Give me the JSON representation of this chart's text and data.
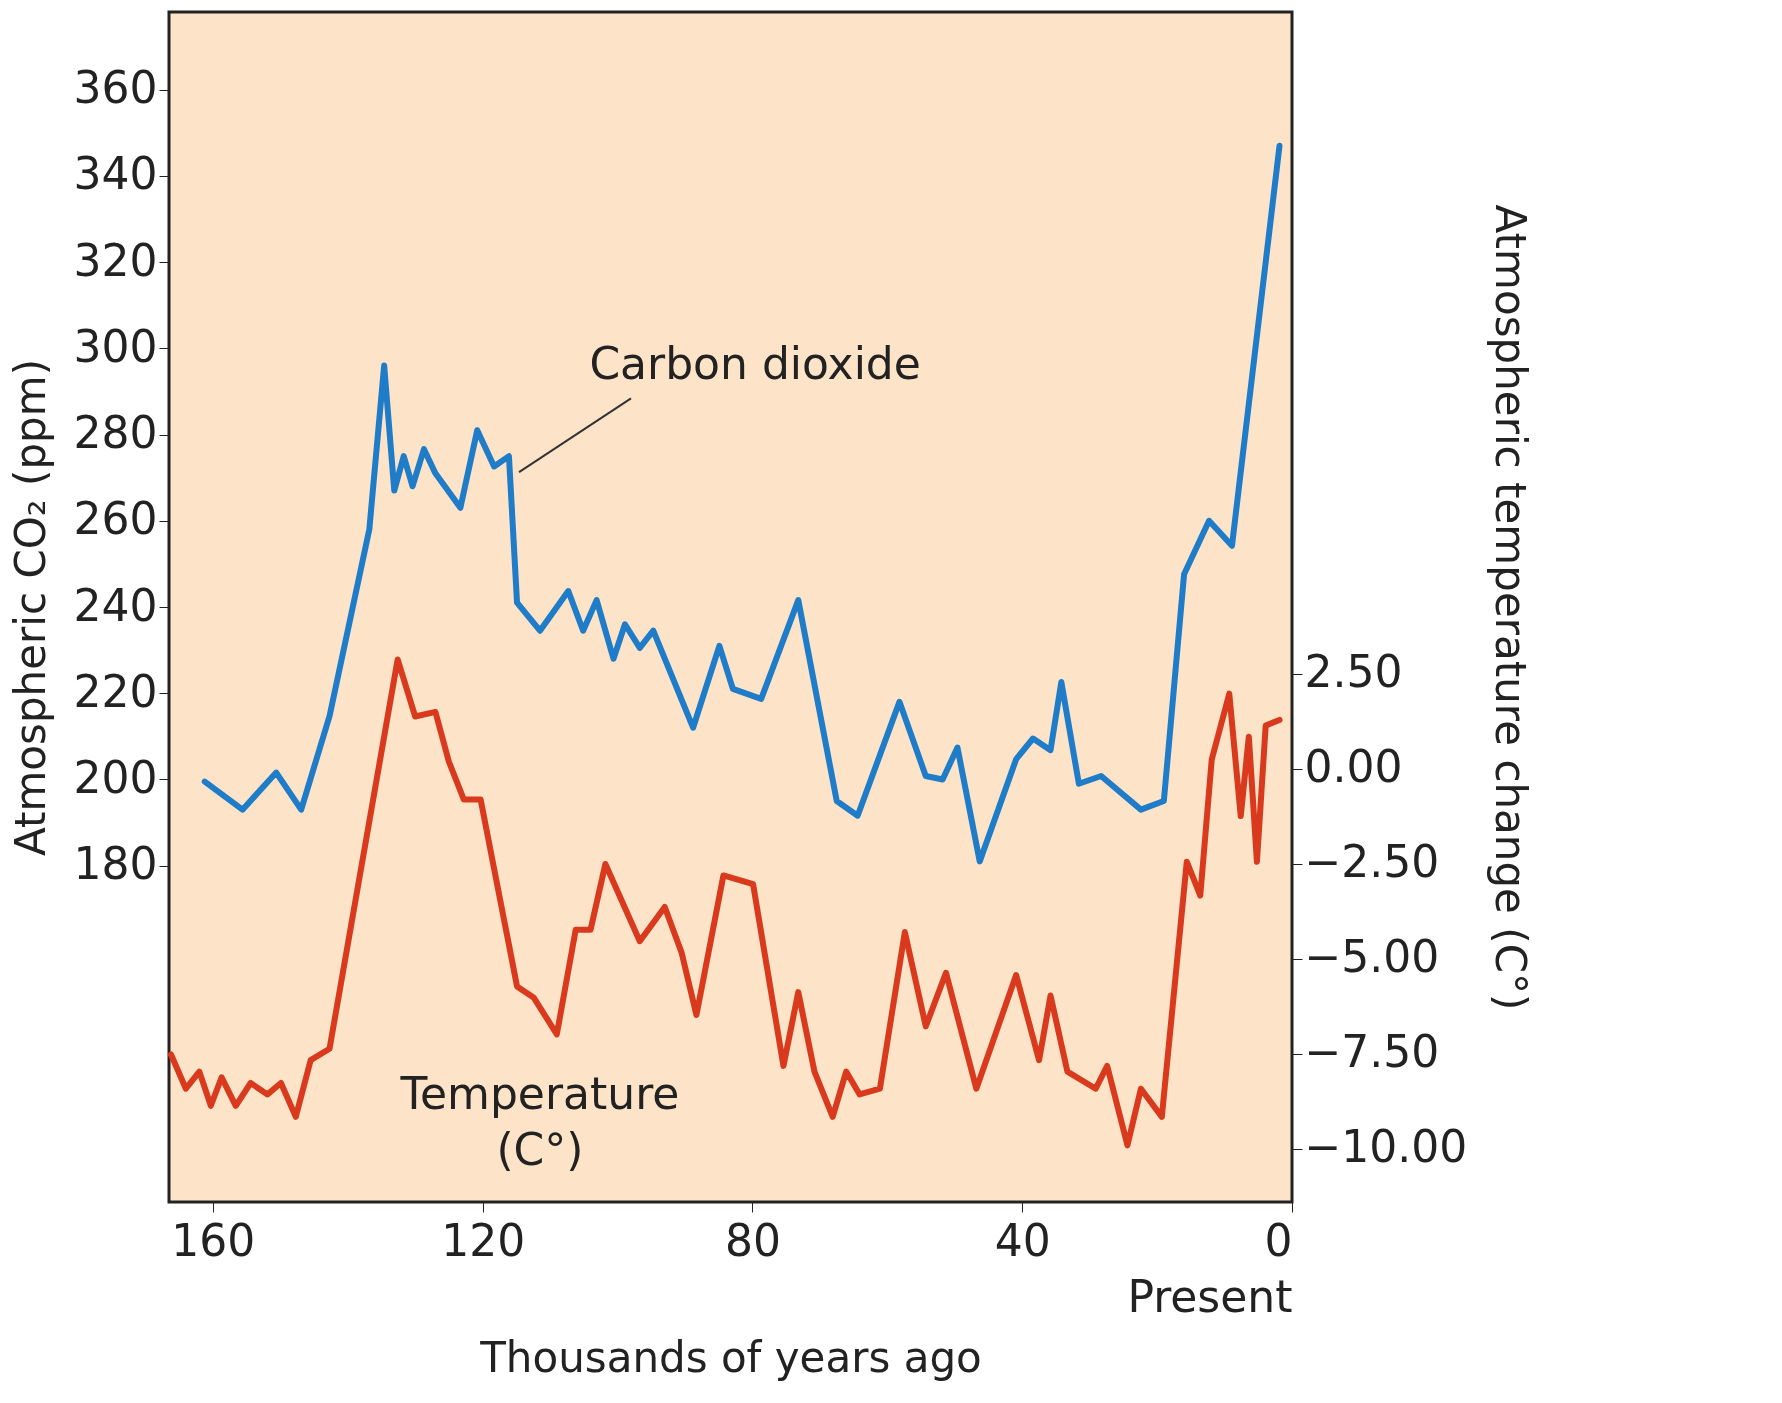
{
  "chart_data": {
    "type": "line",
    "xlabel": "Thousands of years ago",
    "ylabel": "Atmospheric CO₂ (ppm)",
    "y2label": "Atmospheric temperature change (C°)",
    "xlim": [
      166.5,
      0
    ],
    "xticks": [
      160,
      120,
      80,
      40,
      {
        "value": 0,
        "label": "0\nPresent"
      }
    ],
    "ylim": [
      102,
      378
    ],
    "yticks": [
      180,
      200,
      220,
      240,
      260,
      280,
      300,
      320,
      340,
      360
    ],
    "y2lim": [
      -11.4,
      19.9
    ],
    "y2ticks": [
      {
        "value": 2.5,
        "label": "2.50"
      },
      {
        "value": 0,
        "label": "0.00"
      },
      {
        "value": -2.5,
        "label": "−2.50"
      },
      {
        "value": -5,
        "label": "−5.00"
      },
      {
        "value": -7.5,
        "label": "−7.50"
      },
      {
        "value": -10,
        "label": "−10.00"
      }
    ],
    "grid": false,
    "marker": "none",
    "line_style": "solid",
    "series": [
      {
        "name": "Carbon dioxide",
        "color": "#1f7cc8",
        "x": [
          161.2,
          155.6,
          150.6,
          146.9,
          142.7,
          136.8,
          134.6,
          133.1,
          131.7,
          130.4,
          128.7,
          127,
          123.3,
          120.8,
          118.3,
          116.1,
          114.9,
          111.5,
          107.3,
          105.1,
          103.1,
          100.6,
          98.9,
          96.7,
          94.7,
          88.8,
          84.9,
          82.9,
          78.7,
          73.2,
          67.5,
          64.4,
          58.2,
          54.3,
          51.8,
          49.6,
          46.3,
          40.9,
          38.4,
          35.8,
          34.2,
          31.6,
          28.3,
          22.4,
          19,
          16,
          12.3,
          8.9,
          1.85
        ],
        "values": [
          199.5,
          193,
          201.6,
          193,
          214.7,
          258,
          296,
          267,
          275,
          268,
          276.6,
          271,
          263,
          281,
          272.6,
          275,
          241,
          234.5,
          243.7,
          234.5,
          241.6,
          228,
          236,
          230.5,
          234.5,
          212,
          231,
          221,
          218.7,
          241.6,
          195,
          191.6,
          218,
          200.8,
          200,
          207.4,
          181,
          204.7,
          209.5,
          206.8,
          222.6,
          199,
          200.8,
          193,
          195,
          247.6,
          260,
          254.2,
          347
        ]
      },
      {
        "name": "Temperature (C°)",
        "color": "#d93a1e",
        "axis": "y2",
        "x": [
          166.2,
          164,
          162,
          160.3,
          158.7,
          156.6,
          154.4,
          151.9,
          149.9,
          147.7,
          145.5,
          142.7,
          132.6,
          130,
          127,
          125,
          122.8,
          120.3,
          114.9,
          112.4,
          109,
          106.2,
          104,
          101.8,
          96.7,
          93,
          90.5,
          88.3,
          84.3,
          79.9,
          75.4,
          73.2,
          70.8,
          68.1,
          66.1,
          64.1,
          61.1,
          57.4,
          54.3,
          51.3,
          46.8,
          40.9,
          37.5,
          35.8,
          33.3,
          29.1,
          27.4,
          24.4,
          22.4,
          19.3,
          15.6,
          13.6,
          11.9,
          9.3,
          7.6,
          6.4,
          5.2,
          3.9,
          1.85
        ],
        "values": [
          -7.52,
          -8.42,
          -7.97,
          -8.87,
          -8.12,
          -8.87,
          -8.27,
          -8.57,
          -8.27,
          -9.16,
          -7.67,
          -7.37,
          2.87,
          1.37,
          1.49,
          0.18,
          -0.81,
          -0.81,
          -5.73,
          -6.03,
          -6.99,
          -4.24,
          -4.24,
          -2.51,
          -4.54,
          -3.64,
          -4.84,
          -6.48,
          -2.81,
          -3.04,
          -7.82,
          -5.88,
          -7.97,
          -9.16,
          -7.97,
          -8.57,
          -8.42,
          -4.3,
          -6.78,
          -5.37,
          -8.42,
          -5.43,
          -7.67,
          -5.97,
          -7.97,
          -8.42,
          -7.82,
          -9.91,
          -8.42,
          -9.16,
          -2.45,
          -3.34,
          0.24,
          1.97,
          -1.25,
          0.84,
          -2.45,
          1.13,
          1.28
        ]
      }
    ]
  }
}
